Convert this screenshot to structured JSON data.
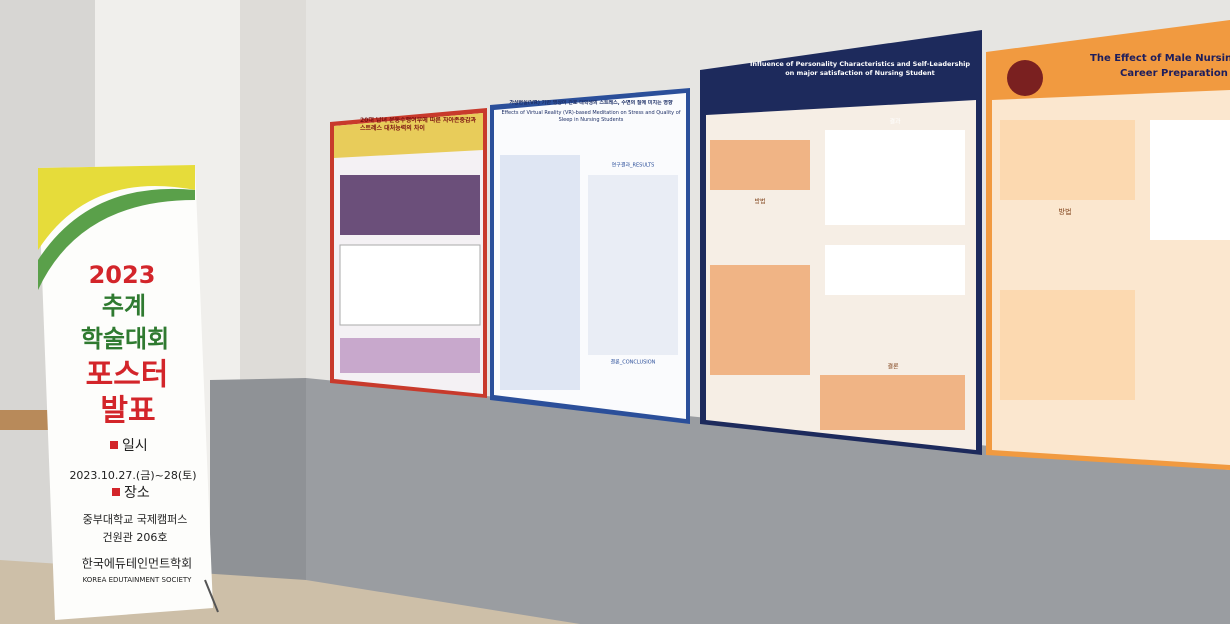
{
  "banner": {
    "year": "2023",
    "line1": "추계",
    "line2": "학술대회",
    "line3": "포스터",
    "line4": "발표",
    "date_label": "일시",
    "date": "2023.10.27.(금)~28(토)",
    "place_label": "장소",
    "place1": "중부대학교 국제캠퍼스",
    "place2": "건원관 206호",
    "society": "한국에듀테인먼트학회",
    "society_en": "KOREA EDUTAINMENT SOCIETY"
  },
  "posters": [
    {
      "title": "20대 남녀 운동수행여부에 따른 자아존중감과 스트레스 대처능력의 차이"
    },
    {
      "title": "가상현실(VR) 기반 명상이 간호 대학생의 스트레스, 수면의 질에 미치는 영향",
      "subtitle": "Effects of Virtual Reality (VR)-based Meditation on Stress and Quality of Sleep in Nursing Students",
      "section1": "연구결과_RESULTS",
      "section2": "결론_CONCLUSION"
    },
    {
      "title": "Influence of Personality Characteristics and Self-Leadership on major satisfaction of Nursing Student",
      "section1": "결과",
      "section2": "방법",
      "section3": "결론"
    },
    {
      "title": "The Effect of Male Nursing",
      "subtitle": "Career Preparation",
      "section1": "방법"
    }
  ]
}
